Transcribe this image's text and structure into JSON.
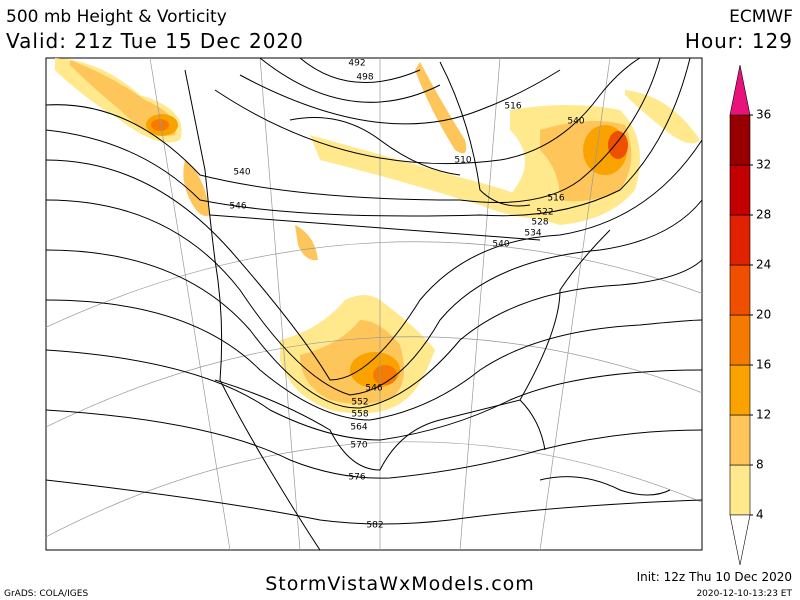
{
  "header": {
    "title": "500 mb Height & Vorticity",
    "model": "ECMWF",
    "valid": "Valid: 21z Tue 15 Dec 2020",
    "hour": "Hour: 129"
  },
  "map": {
    "contour_labels": [
      492,
      498,
      516,
      540,
      510,
      540,
      546,
      516,
      522,
      528,
      534,
      540,
      546,
      552,
      558,
      564,
      570,
      576,
      582
    ]
  },
  "colorbar": {
    "ticks": [
      4,
      8,
      12,
      16,
      20,
      24,
      28,
      32,
      36
    ],
    "colors": [
      "#ffe98c",
      "#fdc55a",
      "#f9a200",
      "#f57b00",
      "#ef4f00",
      "#e02200",
      "#c30000",
      "#980000"
    ],
    "above_color": "#e8127a"
  },
  "footer": {
    "site": "StormVistaWxModels.com",
    "init": "Init: 12z Thu 10 Dec 2020",
    "credit": "GrADS: COLA/IGES",
    "timestamp": "2020-12-10-13:23 ET"
  }
}
